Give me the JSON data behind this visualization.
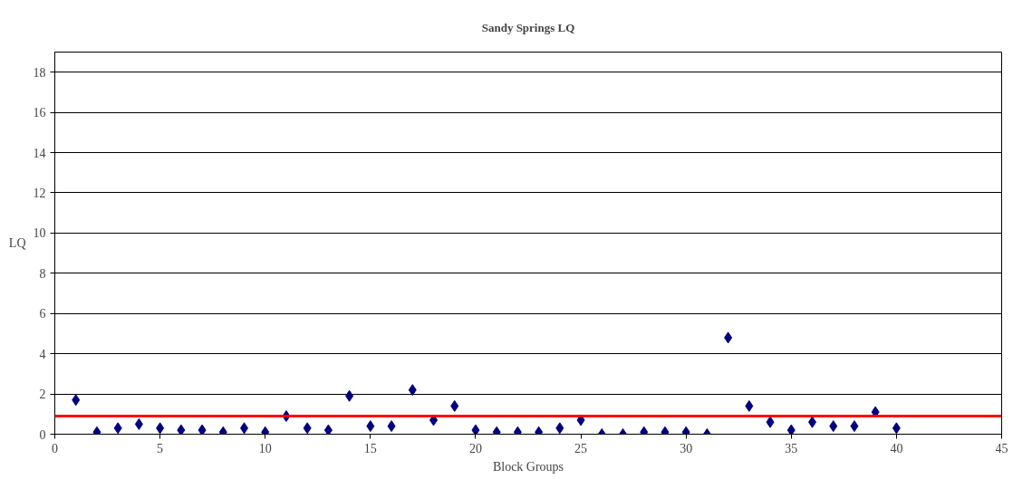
{
  "chart_data": {
    "type": "scatter",
    "title": "Sandy Springs LQ",
    "xlabel": "Block Groups",
    "ylabel": "LQ",
    "x": [
      1,
      2,
      3,
      4,
      5,
      6,
      7,
      8,
      9,
      10,
      11,
      12,
      13,
      14,
      15,
      16,
      17,
      18,
      19,
      20,
      21,
      22,
      23,
      24,
      25,
      26,
      27,
      28,
      29,
      30,
      31,
      32,
      33,
      34,
      35,
      36,
      37,
      38,
      39,
      40
    ],
    "values": [
      1.7,
      0.1,
      0.3,
      0.5,
      0.3,
      0.2,
      0.2,
      0.1,
      0.3,
      0.1,
      0.9,
      0.3,
      0.2,
      1.9,
      0.4,
      0.4,
      2.2,
      0.7,
      1.4,
      0.2,
      0.1,
      0.1,
      0.1,
      0.3,
      0.7,
      0,
      0,
      0.1,
      0.1,
      0.1,
      0,
      4.8,
      1.4,
      0.6,
      0.2,
      0.6,
      0.4,
      0.4,
      1.1,
      0.3
    ],
    "color": "#000080",
    "marker": "diamond",
    "xlim": [
      0,
      45
    ],
    "xticks": [
      0,
      5,
      10,
      15,
      20,
      25,
      30,
      35,
      40,
      45
    ],
    "ylim": [
      0,
      19
    ],
    "yticks": [
      0,
      2,
      4,
      6,
      8,
      10,
      12,
      14,
      16,
      18
    ],
    "grid": "y",
    "ref_lines": [
      {
        "axis": "y",
        "value": 0.9,
        "color": "#ff0000"
      }
    ]
  }
}
